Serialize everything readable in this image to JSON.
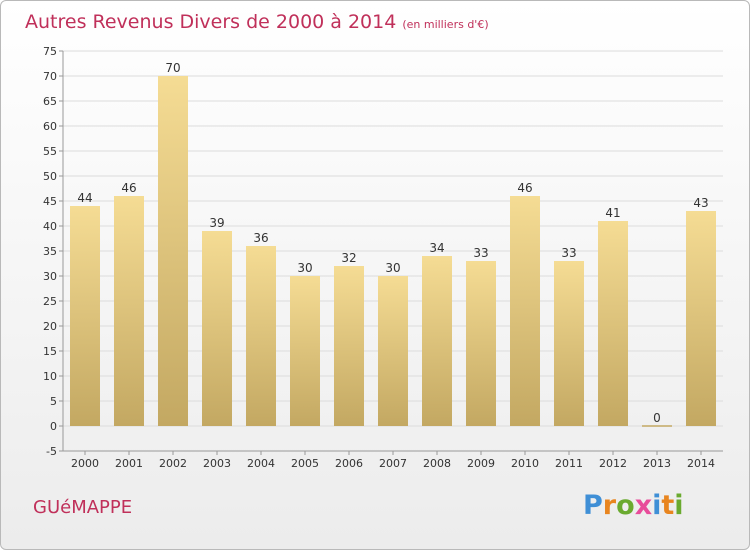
{
  "chart_data": {
    "type": "bar",
    "title": "Autres Revenus Divers de 2000 à 2014",
    "unit": "(en milliers d'€)",
    "categories": [
      "2000",
      "2001",
      "2002",
      "2003",
      "2004",
      "2005",
      "2006",
      "2007",
      "2008",
      "2009",
      "2010",
      "2011",
      "2012",
      "2013",
      "2014"
    ],
    "values": [
      44,
      46,
      70,
      39,
      36,
      30,
      32,
      30,
      34,
      33,
      46,
      33,
      41,
      0,
      43
    ],
    "ylim": [
      -5,
      75
    ],
    "yticks": [
      -5,
      0,
      5,
      10,
      15,
      20,
      25,
      30,
      35,
      40,
      45,
      50,
      55,
      60,
      65,
      70,
      75
    ],
    "grid": true,
    "colors": {
      "bar_top": "#f5dc94",
      "bar_bottom": "#c3a862",
      "title": "#c0305a"
    }
  },
  "commune": "GUéMAPPE",
  "logo": {
    "letters": [
      "P",
      "r",
      "o",
      "x",
      "i",
      "t",
      "i"
    ]
  }
}
